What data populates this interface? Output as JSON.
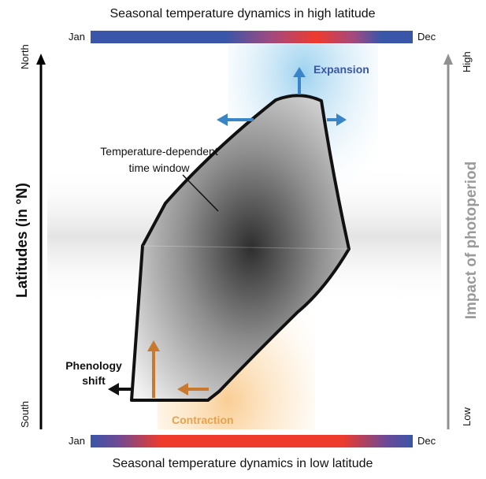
{
  "title_top": "Seasonal temperature dynamics in high latitude",
  "title_bottom": "Seasonal temperature dynamics in low latitude",
  "bars": {
    "top": {
      "start": "Jan",
      "end": "Dec"
    },
    "bottom": {
      "start": "Jan",
      "end": "Dec"
    }
  },
  "left_axis": {
    "label": "Latitudes (in °N)",
    "top": "North",
    "bottom": "South"
  },
  "right_axis": {
    "label": "Impact of photoperiod",
    "top": "High",
    "bottom": "Low"
  },
  "labels": {
    "window_line1": "Temperature-dependent",
    "window_line2": "time window",
    "expansion": "Expansion",
    "contraction": "Contraction",
    "phenology_line1": "Phenology",
    "phenology_line2": "shift"
  },
  "colors": {
    "cold": "#3a56a8",
    "warm": "#ef3b2c",
    "expansion": "#3a85c8",
    "contraction": "#c8792e",
    "axis_right": "#909090",
    "text_blue": "#3a56a8",
    "text_orange": "#e8a24a"
  }
}
